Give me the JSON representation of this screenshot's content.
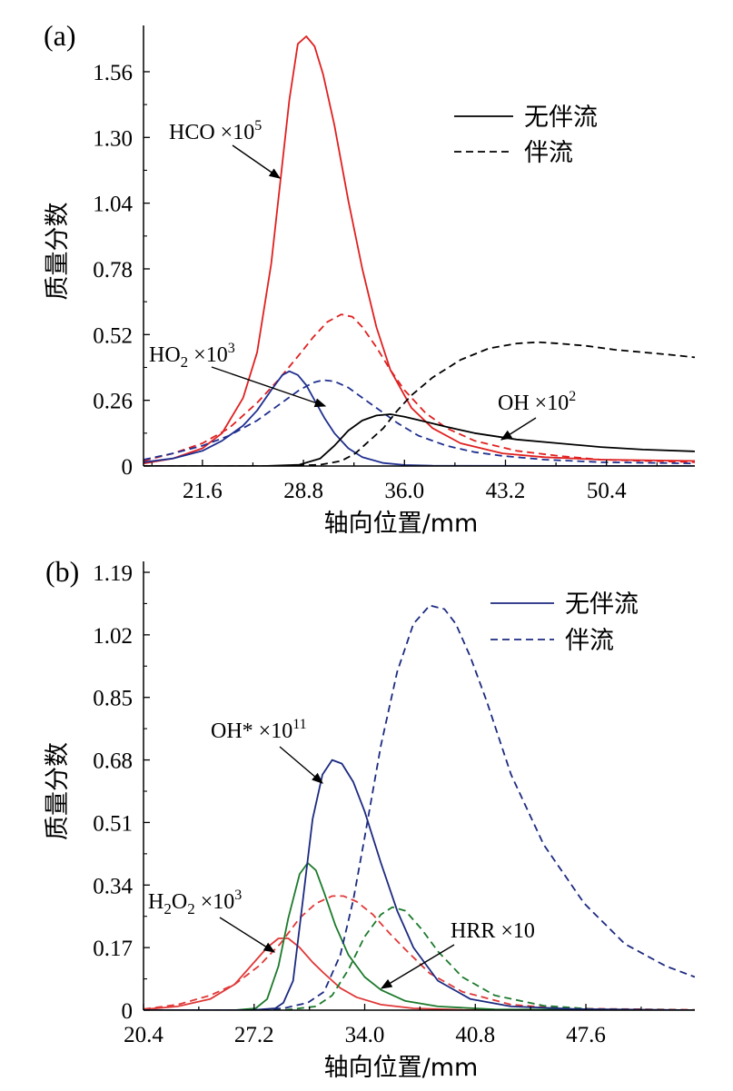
{
  "chart_data": [
    {
      "panel": "(a)",
      "type": "line",
      "xlabel": "轴向位置/mm",
      "ylabel": "质量分数",
      "xlim": [
        17.4,
        56.7
      ],
      "ylim": [
        0,
        1.7
      ],
      "xticks": [
        "21.6",
        "28.8",
        "36.0",
        "43.2",
        "50.4"
      ],
      "xtick_values": [
        21.6,
        28.8,
        36.0,
        43.2,
        50.4
      ],
      "yticks": [
        "0",
        "0.26",
        "0.52",
        "0.78",
        "1.04",
        "1.30",
        "1.56"
      ],
      "ytick_values": [
        0,
        0.26,
        0.52,
        0.78,
        1.04,
        1.3,
        1.56
      ],
      "legend": {
        "position": "top-right",
        "entries": [
          {
            "label": "无伴流",
            "style": "solid"
          },
          {
            "label": "伴流",
            "style": "dashed"
          }
        ]
      },
      "annotations": [
        {
          "base": "HCO",
          "op": "×",
          "exp_base": "10",
          "exp": "5"
        },
        {
          "base": "HO",
          "sub": "2",
          "op": "×",
          "exp_base": "10",
          "exp": "3"
        },
        {
          "base": "OH",
          "op": "×",
          "exp_base": "10",
          "exp": "2"
        }
      ],
      "series": [
        {
          "color": "#e02020",
          "style": "solid",
          "x": [
            17.4,
            19.5,
            21.6,
            23.0,
            24.5,
            25.5,
            26.5,
            27.2,
            27.8,
            28.4,
            29.0,
            29.6,
            30.2,
            31.0,
            32.0,
            33.0,
            34.0,
            35.0,
            36.5,
            38.0,
            40.0,
            43.0,
            46.0,
            50.0,
            56.7
          ],
          "y": [
            0.01,
            0.03,
            0.07,
            0.13,
            0.27,
            0.45,
            0.8,
            1.15,
            1.45,
            1.67,
            1.7,
            1.66,
            1.55,
            1.35,
            1.05,
            0.78,
            0.55,
            0.38,
            0.23,
            0.15,
            0.09,
            0.05,
            0.035,
            0.025,
            0.02
          ]
        },
        {
          "color": "#e02020",
          "style": "dashed",
          "x": [
            17.4,
            19.5,
            21.6,
            23.5,
            25.5,
            27.0,
            28.5,
            29.5,
            30.5,
            31.5,
            32.3,
            33.0,
            34.0,
            35.0,
            36.0,
            37.5,
            39.0,
            41.0,
            44.0,
            47.0,
            50.0,
            56.7
          ],
          "y": [
            0.02,
            0.05,
            0.09,
            0.15,
            0.25,
            0.34,
            0.44,
            0.51,
            0.57,
            0.6,
            0.59,
            0.55,
            0.47,
            0.38,
            0.3,
            0.21,
            0.15,
            0.1,
            0.06,
            0.04,
            0.025,
            0.015
          ]
        },
        {
          "color": "#1f2f8f",
          "style": "solid",
          "x": [
            17.4,
            19.5,
            21.6,
            23.0,
            24.5,
            25.5,
            26.5,
            27.3,
            27.8,
            28.4,
            29.0,
            29.6,
            30.3,
            31.0,
            32.0,
            33.0,
            34.5,
            36.0,
            38.0,
            56.7
          ],
          "y": [
            0.015,
            0.03,
            0.06,
            0.1,
            0.16,
            0.22,
            0.3,
            0.36,
            0.375,
            0.36,
            0.32,
            0.26,
            0.19,
            0.13,
            0.07,
            0.035,
            0.012,
            0.004,
            0.001,
            0.0
          ]
        },
        {
          "color": "#1f2f8f",
          "style": "dashed",
          "x": [
            17.4,
            19.5,
            21.6,
            23.5,
            25.5,
            27.0,
            28.5,
            29.5,
            30.2,
            31.0,
            32.0,
            33.0,
            34.0,
            35.5,
            37.0,
            39.0,
            41.0,
            43.0,
            46.0,
            50.0,
            56.7
          ],
          "y": [
            0.025,
            0.05,
            0.08,
            0.12,
            0.18,
            0.24,
            0.3,
            0.33,
            0.34,
            0.335,
            0.31,
            0.27,
            0.23,
            0.17,
            0.12,
            0.08,
            0.055,
            0.04,
            0.025,
            0.015,
            0.01
          ]
        },
        {
          "color": "#000000",
          "style": "solid",
          "x": [
            17.4,
            26.0,
            28.5,
            30.0,
            31.0,
            32.0,
            33.0,
            34.0,
            35.0,
            36.0,
            37.5,
            39.0,
            41.0,
            44.0,
            47.0,
            50.0,
            53.0,
            56.7
          ],
          "y": [
            0.0,
            0.0,
            0.005,
            0.03,
            0.08,
            0.14,
            0.18,
            0.2,
            0.205,
            0.195,
            0.175,
            0.155,
            0.13,
            0.105,
            0.09,
            0.075,
            0.065,
            0.058
          ]
        },
        {
          "color": "#000000",
          "style": "dashed",
          "x": [
            17.4,
            27.0,
            30.0,
            31.5,
            32.5,
            33.5,
            34.5,
            35.5,
            36.5,
            38.0,
            40.0,
            42.0,
            44.0,
            45.5,
            47.0,
            49.0,
            51.0,
            53.0,
            55.0,
            56.7
          ],
          "y": [
            0.0,
            0.0,
            0.005,
            0.02,
            0.05,
            0.1,
            0.15,
            0.22,
            0.28,
            0.35,
            0.42,
            0.465,
            0.485,
            0.49,
            0.485,
            0.475,
            0.46,
            0.45,
            0.44,
            0.43
          ]
        }
      ]
    },
    {
      "panel": "(b)",
      "type": "line",
      "xlabel": "轴向位置/mm",
      "ylabel": "质量分数",
      "xlim": [
        20.4,
        54.3
      ],
      "ylim": [
        0,
        1.19
      ],
      "xticks": [
        "20.4",
        "27.2",
        "34.0",
        "40.8",
        "47.6"
      ],
      "xtick_values": [
        20.4,
        27.2,
        34.0,
        40.8,
        47.6
      ],
      "yticks": [
        "0",
        "0.17",
        "0.34",
        "0.51",
        "0.68",
        "0.85",
        "1.02",
        "1.19"
      ],
      "ytick_values": [
        0,
        0.17,
        0.34,
        0.51,
        0.68,
        0.85,
        1.02,
        1.19
      ],
      "legend": {
        "position": "top-right",
        "entries": [
          {
            "label": "无伴流",
            "style": "solid"
          },
          {
            "label": "伴流",
            "style": "dashed"
          }
        ]
      },
      "annotations": [
        {
          "base": "OH*",
          "op": "×",
          "exp_base": "10",
          "exp": "11"
        },
        {
          "base": "H",
          "sub": "2",
          "base2": "O",
          "sub2": "2",
          "op": "×",
          "exp_base": "10",
          "exp": "3"
        },
        {
          "base": "HRR",
          "op": "×",
          "exp_base": "10",
          "exp": ""
        }
      ],
      "series": [
        {
          "color": "#e03838",
          "style": "solid",
          "x": [
            20.4,
            22.5,
            24.5,
            26.0,
            27.0,
            28.0,
            28.7,
            29.3,
            30.0,
            30.8,
            31.5,
            32.5,
            33.5,
            35.0,
            37.0,
            40.0,
            54.3
          ],
          "y": [
            0.002,
            0.01,
            0.03,
            0.07,
            0.12,
            0.17,
            0.195,
            0.195,
            0.17,
            0.13,
            0.1,
            0.06,
            0.035,
            0.015,
            0.005,
            0.001,
            0.0
          ]
        },
        {
          "color": "#e03838",
          "style": "dashed",
          "x": [
            20.4,
            22.5,
            24.5,
            26.0,
            27.5,
            28.8,
            30.0,
            31.0,
            32.0,
            32.7,
            33.5,
            34.5,
            35.5,
            36.5,
            38.0,
            40.0,
            43.0,
            46.0,
            54.3
          ],
          "y": [
            0.003,
            0.015,
            0.04,
            0.07,
            0.12,
            0.18,
            0.25,
            0.29,
            0.31,
            0.31,
            0.295,
            0.26,
            0.21,
            0.165,
            0.1,
            0.05,
            0.015,
            0.005,
            0.001
          ]
        },
        {
          "color": "#1c7a2c",
          "style": "solid",
          "x": [
            20.4,
            26.0,
            27.3,
            28.0,
            28.7,
            29.3,
            30.0,
            30.5,
            31.0,
            31.5,
            32.2,
            33.0,
            34.0,
            35.0,
            36.5,
            38.5,
            42.0,
            54.3
          ],
          "y": [
            0.0,
            0.0,
            0.005,
            0.03,
            0.12,
            0.25,
            0.37,
            0.4,
            0.38,
            0.32,
            0.23,
            0.15,
            0.09,
            0.055,
            0.025,
            0.01,
            0.002,
            0.0
          ]
        },
        {
          "color": "#1c7a2c",
          "style": "dashed",
          "x": [
            20.4,
            29.0,
            31.0,
            32.0,
            33.0,
            34.0,
            35.0,
            35.7,
            36.5,
            37.5,
            38.5,
            40.0,
            42.0,
            45.0,
            48.0,
            54.3
          ],
          "y": [
            0.0,
            0.0,
            0.01,
            0.04,
            0.11,
            0.2,
            0.26,
            0.28,
            0.27,
            0.22,
            0.16,
            0.09,
            0.04,
            0.012,
            0.003,
            0.0
          ]
        },
        {
          "color": "#1c2a80",
          "style": "solid",
          "x": [
            20.4,
            27.0,
            28.5,
            29.0,
            29.6,
            30.2,
            30.8,
            31.4,
            32.0,
            32.6,
            33.3,
            34.0,
            35.0,
            36.0,
            37.0,
            38.5,
            40.5,
            43.0,
            47.0,
            54.3
          ],
          "y": [
            0.0,
            0.0,
            0.005,
            0.02,
            0.08,
            0.3,
            0.52,
            0.64,
            0.68,
            0.67,
            0.62,
            0.54,
            0.4,
            0.27,
            0.17,
            0.08,
            0.03,
            0.01,
            0.003,
            0.0
          ]
        },
        {
          "color": "#1c2a80",
          "style": "dashed",
          "x": [
            20.4,
            27.0,
            29.0,
            30.5,
            31.5,
            32.5,
            33.3,
            34.0,
            35.0,
            36.0,
            37.0,
            38.0,
            38.9,
            39.6,
            40.5,
            41.5,
            43.0,
            45.0,
            47.5,
            50.0,
            52.5,
            54.3
          ],
          "y": [
            0.0,
            0.0,
            0.005,
            0.02,
            0.05,
            0.15,
            0.3,
            0.47,
            0.72,
            0.92,
            1.05,
            1.1,
            1.09,
            1.05,
            0.96,
            0.84,
            0.64,
            0.45,
            0.29,
            0.18,
            0.12,
            0.09
          ]
        }
      ]
    }
  ]
}
